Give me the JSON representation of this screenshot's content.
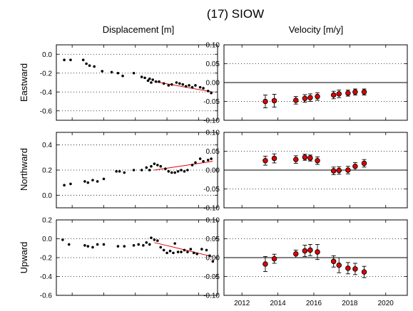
{
  "title": "(17) SIOW",
  "column_titles": [
    "Displacement [m]",
    "Velocity [m/y]"
  ],
  "chart_data": [
    {
      "type": "scatter",
      "component": "Eastward",
      "quantity": "displacement",
      "xlim": [
        2011,
        2021.2
      ],
      "ylim": [
        -0.7,
        0.1
      ],
      "yticks": [
        0.0,
        -0.2,
        -0.4,
        -0.6
      ],
      "ytick_labels": [
        "0.0",
        "-0.2",
        "-0.4",
        "-0.6"
      ],
      "grid": "horizontal dotted",
      "points": [
        [
          2011.5,
          -0.06
        ],
        [
          2011.9,
          -0.06
        ],
        [
          2012.7,
          -0.06
        ],
        [
          2012.9,
          -0.1
        ],
        [
          2013.1,
          -0.12
        ],
        [
          2013.4,
          -0.13
        ],
        [
          2013.9,
          -0.18
        ],
        [
          2014.5,
          -0.19
        ],
        [
          2014.9,
          -0.2
        ],
        [
          2015.2,
          -0.23
        ],
        [
          2015.9,
          -0.2
        ],
        [
          2016.4,
          -0.24
        ],
        [
          2016.6,
          -0.25
        ],
        [
          2016.8,
          -0.28
        ],
        [
          2016.9,
          -0.26
        ],
        [
          2017.0,
          -0.3
        ],
        [
          2017.1,
          -0.27
        ],
        [
          2017.3,
          -0.29
        ],
        [
          2017.5,
          -0.29
        ],
        [
          2017.8,
          -0.31
        ],
        [
          2018.1,
          -0.33
        ],
        [
          2018.3,
          -0.32
        ],
        [
          2018.6,
          -0.3
        ],
        [
          2018.8,
          -0.31
        ],
        [
          2019.0,
          -0.32
        ],
        [
          2019.2,
          -0.34
        ],
        [
          2019.4,
          -0.33
        ],
        [
          2019.6,
          -0.35
        ],
        [
          2019.8,
          -0.33
        ],
        [
          2020.1,
          -0.35
        ],
        [
          2020.3,
          -0.36
        ],
        [
          2020.6,
          -0.39
        ],
        [
          2020.8,
          -0.41
        ]
      ],
      "trend": [
        [
          2017.2,
          -0.29
        ],
        [
          2020.9,
          -0.4
        ]
      ]
    },
    {
      "type": "scatter",
      "component": "Northward",
      "quantity": "displacement",
      "xlim": [
        2011,
        2021.2
      ],
      "ylim": [
        -0.1,
        0.5
      ],
      "yticks": [
        0.4,
        0.2,
        0.0
      ],
      "ytick_labels": [
        "0.4",
        "0.2",
        "0.0"
      ],
      "grid": "horizontal dotted",
      "points": [
        [
          2011.5,
          0.08
        ],
        [
          2011.9,
          0.09
        ],
        [
          2012.8,
          0.11
        ],
        [
          2013.0,
          0.1
        ],
        [
          2013.3,
          0.12
        ],
        [
          2013.6,
          0.11
        ],
        [
          2014.0,
          0.13
        ],
        [
          2014.8,
          0.19
        ],
        [
          2015.0,
          0.19
        ],
        [
          2015.3,
          0.18
        ],
        [
          2015.9,
          0.2
        ],
        [
          2016.4,
          0.2
        ],
        [
          2016.7,
          0.22
        ],
        [
          2016.9,
          0.2
        ],
        [
          2017.0,
          0.23
        ],
        [
          2017.2,
          0.25
        ],
        [
          2017.4,
          0.24
        ],
        [
          2017.6,
          0.23
        ],
        [
          2017.9,
          0.21
        ],
        [
          2018.1,
          0.19
        ],
        [
          2018.3,
          0.18
        ],
        [
          2018.5,
          0.18
        ],
        [
          2018.7,
          0.19
        ],
        [
          2018.9,
          0.2
        ],
        [
          2019.1,
          0.19
        ],
        [
          2019.3,
          0.2
        ],
        [
          2019.6,
          0.24
        ],
        [
          2019.8,
          0.26
        ],
        [
          2020.1,
          0.29
        ],
        [
          2020.3,
          0.27
        ],
        [
          2020.6,
          0.28
        ],
        [
          2020.8,
          0.29
        ]
      ],
      "trend": [
        [
          2017.2,
          0.2
        ],
        [
          2020.9,
          0.27
        ]
      ]
    },
    {
      "type": "scatter",
      "component": "Upward",
      "quantity": "displacement",
      "xlim": [
        2011,
        2021.2
      ],
      "ylim": [
        -0.6,
        0.2
      ],
      "yticks": [
        0.2,
        0.0,
        -0.2,
        -0.4,
        -0.6
      ],
      "ytick_labels": [
        "0.2",
        "0.0",
        "-0.2",
        "-0.4",
        "-0.6"
      ],
      "grid": "horizontal dotted",
      "points": [
        [
          2011.4,
          -0.01
        ],
        [
          2011.8,
          -0.06
        ],
        [
          2012.8,
          -0.07
        ],
        [
          2013.0,
          -0.08
        ],
        [
          2013.3,
          -0.09
        ],
        [
          2013.6,
          -0.06
        ],
        [
          2014.0,
          -0.06
        ],
        [
          2014.9,
          -0.08
        ],
        [
          2015.3,
          -0.08
        ],
        [
          2015.9,
          -0.07
        ],
        [
          2016.2,
          -0.06
        ],
        [
          2016.5,
          -0.07
        ],
        [
          2016.7,
          -0.04
        ],
        [
          2016.9,
          -0.06
        ],
        [
          2017.0,
          0.01
        ],
        [
          2017.2,
          -0.01
        ],
        [
          2017.4,
          -0.02
        ],
        [
          2017.6,
          -0.09
        ],
        [
          2017.8,
          -0.12
        ],
        [
          2018.0,
          -0.15
        ],
        [
          2018.2,
          -0.13
        ],
        [
          2018.4,
          -0.15
        ],
        [
          2018.5,
          -0.05
        ],
        [
          2018.7,
          -0.14
        ],
        [
          2018.9,
          -0.14
        ],
        [
          2019.1,
          -0.12
        ],
        [
          2019.3,
          -0.14
        ],
        [
          2019.5,
          -0.11
        ],
        [
          2019.7,
          -0.15
        ],
        [
          2019.9,
          -0.16
        ],
        [
          2020.2,
          -0.11
        ],
        [
          2020.5,
          -0.12
        ],
        [
          2020.7,
          -0.18
        ],
        [
          2020.9,
          -0.24
        ]
      ],
      "trend": [
        [
          2017.2,
          -0.04
        ],
        [
          2020.9,
          -0.19
        ]
      ]
    },
    {
      "type": "scatter",
      "component": "Eastward",
      "quantity": "velocity",
      "xlim": [
        2011,
        2021.2
      ],
      "ylim": [
        -0.1,
        0.1
      ],
      "yticks": [
        0.1,
        0.05,
        0.0,
        -0.05,
        -0.1
      ],
      "ytick_labels": [
        "0.10",
        "0.05",
        "0.00",
        "-0.05",
        "-0.10"
      ],
      "grid": "horizontal dotted",
      "zero_line": true,
      "points": [
        [
          2013.3,
          -0.05,
          0.017
        ],
        [
          2013.8,
          -0.048,
          0.017
        ],
        [
          2015.0,
          -0.047,
          0.01
        ],
        [
          2015.5,
          -0.042,
          0.01
        ],
        [
          2015.8,
          -0.04,
          0.01
        ],
        [
          2016.2,
          -0.037,
          0.01
        ],
        [
          2017.1,
          -0.033,
          0.01
        ],
        [
          2017.4,
          -0.03,
          0.01
        ],
        [
          2017.9,
          -0.028,
          0.008
        ],
        [
          2018.3,
          -0.025,
          0.008
        ],
        [
          2018.8,
          -0.025,
          0.008
        ]
      ]
    },
    {
      "type": "scatter",
      "component": "Northward",
      "quantity": "velocity",
      "xlim": [
        2011,
        2021.2
      ],
      "ylim": [
        -0.1,
        0.1
      ],
      "yticks": [
        0.1,
        0.05,
        0.0,
        -0.05,
        -0.1
      ],
      "ytick_labels": [
        "0.10",
        "0.05",
        "0.00",
        "-0.05",
        "-0.10"
      ],
      "grid": "horizontal dotted",
      "zero_line": true,
      "points": [
        [
          2013.3,
          0.025,
          0.012
        ],
        [
          2013.8,
          0.031,
          0.012
        ],
        [
          2015.0,
          0.028,
          0.01
        ],
        [
          2015.5,
          0.034,
          0.008
        ],
        [
          2015.8,
          0.032,
          0.008
        ],
        [
          2016.2,
          0.025,
          0.01
        ],
        [
          2017.1,
          -0.002,
          0.01
        ],
        [
          2017.4,
          -0.001,
          0.01
        ],
        [
          2017.9,
          0.0,
          0.01
        ],
        [
          2018.3,
          0.01,
          0.01
        ],
        [
          2018.8,
          0.018,
          0.01
        ]
      ]
    },
    {
      "type": "scatter",
      "component": "Upward",
      "quantity": "velocity",
      "xlim": [
        2011,
        2021.2
      ],
      "ylim": [
        -0.1,
        0.1
      ],
      "yticks": [
        0.1,
        0.05,
        0.0,
        -0.05,
        -0.1
      ],
      "ytick_labels": [
        "0.10",
        "0.05",
        "0.00",
        "-0.05",
        "-0.10"
      ],
      "xticks": [
        2012,
        2014,
        2016,
        2018,
        2020
      ],
      "xtick_labels": [
        "2012",
        "2014",
        "2016",
        "2018",
        "2020"
      ],
      "grid": "horizontal dotted",
      "zero_line": true,
      "points": [
        [
          2013.3,
          -0.017,
          0.02
        ],
        [
          2013.8,
          -0.003,
          0.012
        ],
        [
          2015.0,
          0.01,
          0.01
        ],
        [
          2015.5,
          0.018,
          0.015
        ],
        [
          2015.8,
          0.02,
          0.015
        ],
        [
          2016.2,
          0.015,
          0.02
        ],
        [
          2017.1,
          -0.01,
          0.015
        ],
        [
          2017.4,
          -0.02,
          0.02
        ],
        [
          2017.9,
          -0.028,
          0.015
        ],
        [
          2018.3,
          -0.03,
          0.015
        ],
        [
          2018.8,
          -0.038,
          0.015
        ]
      ]
    }
  ]
}
